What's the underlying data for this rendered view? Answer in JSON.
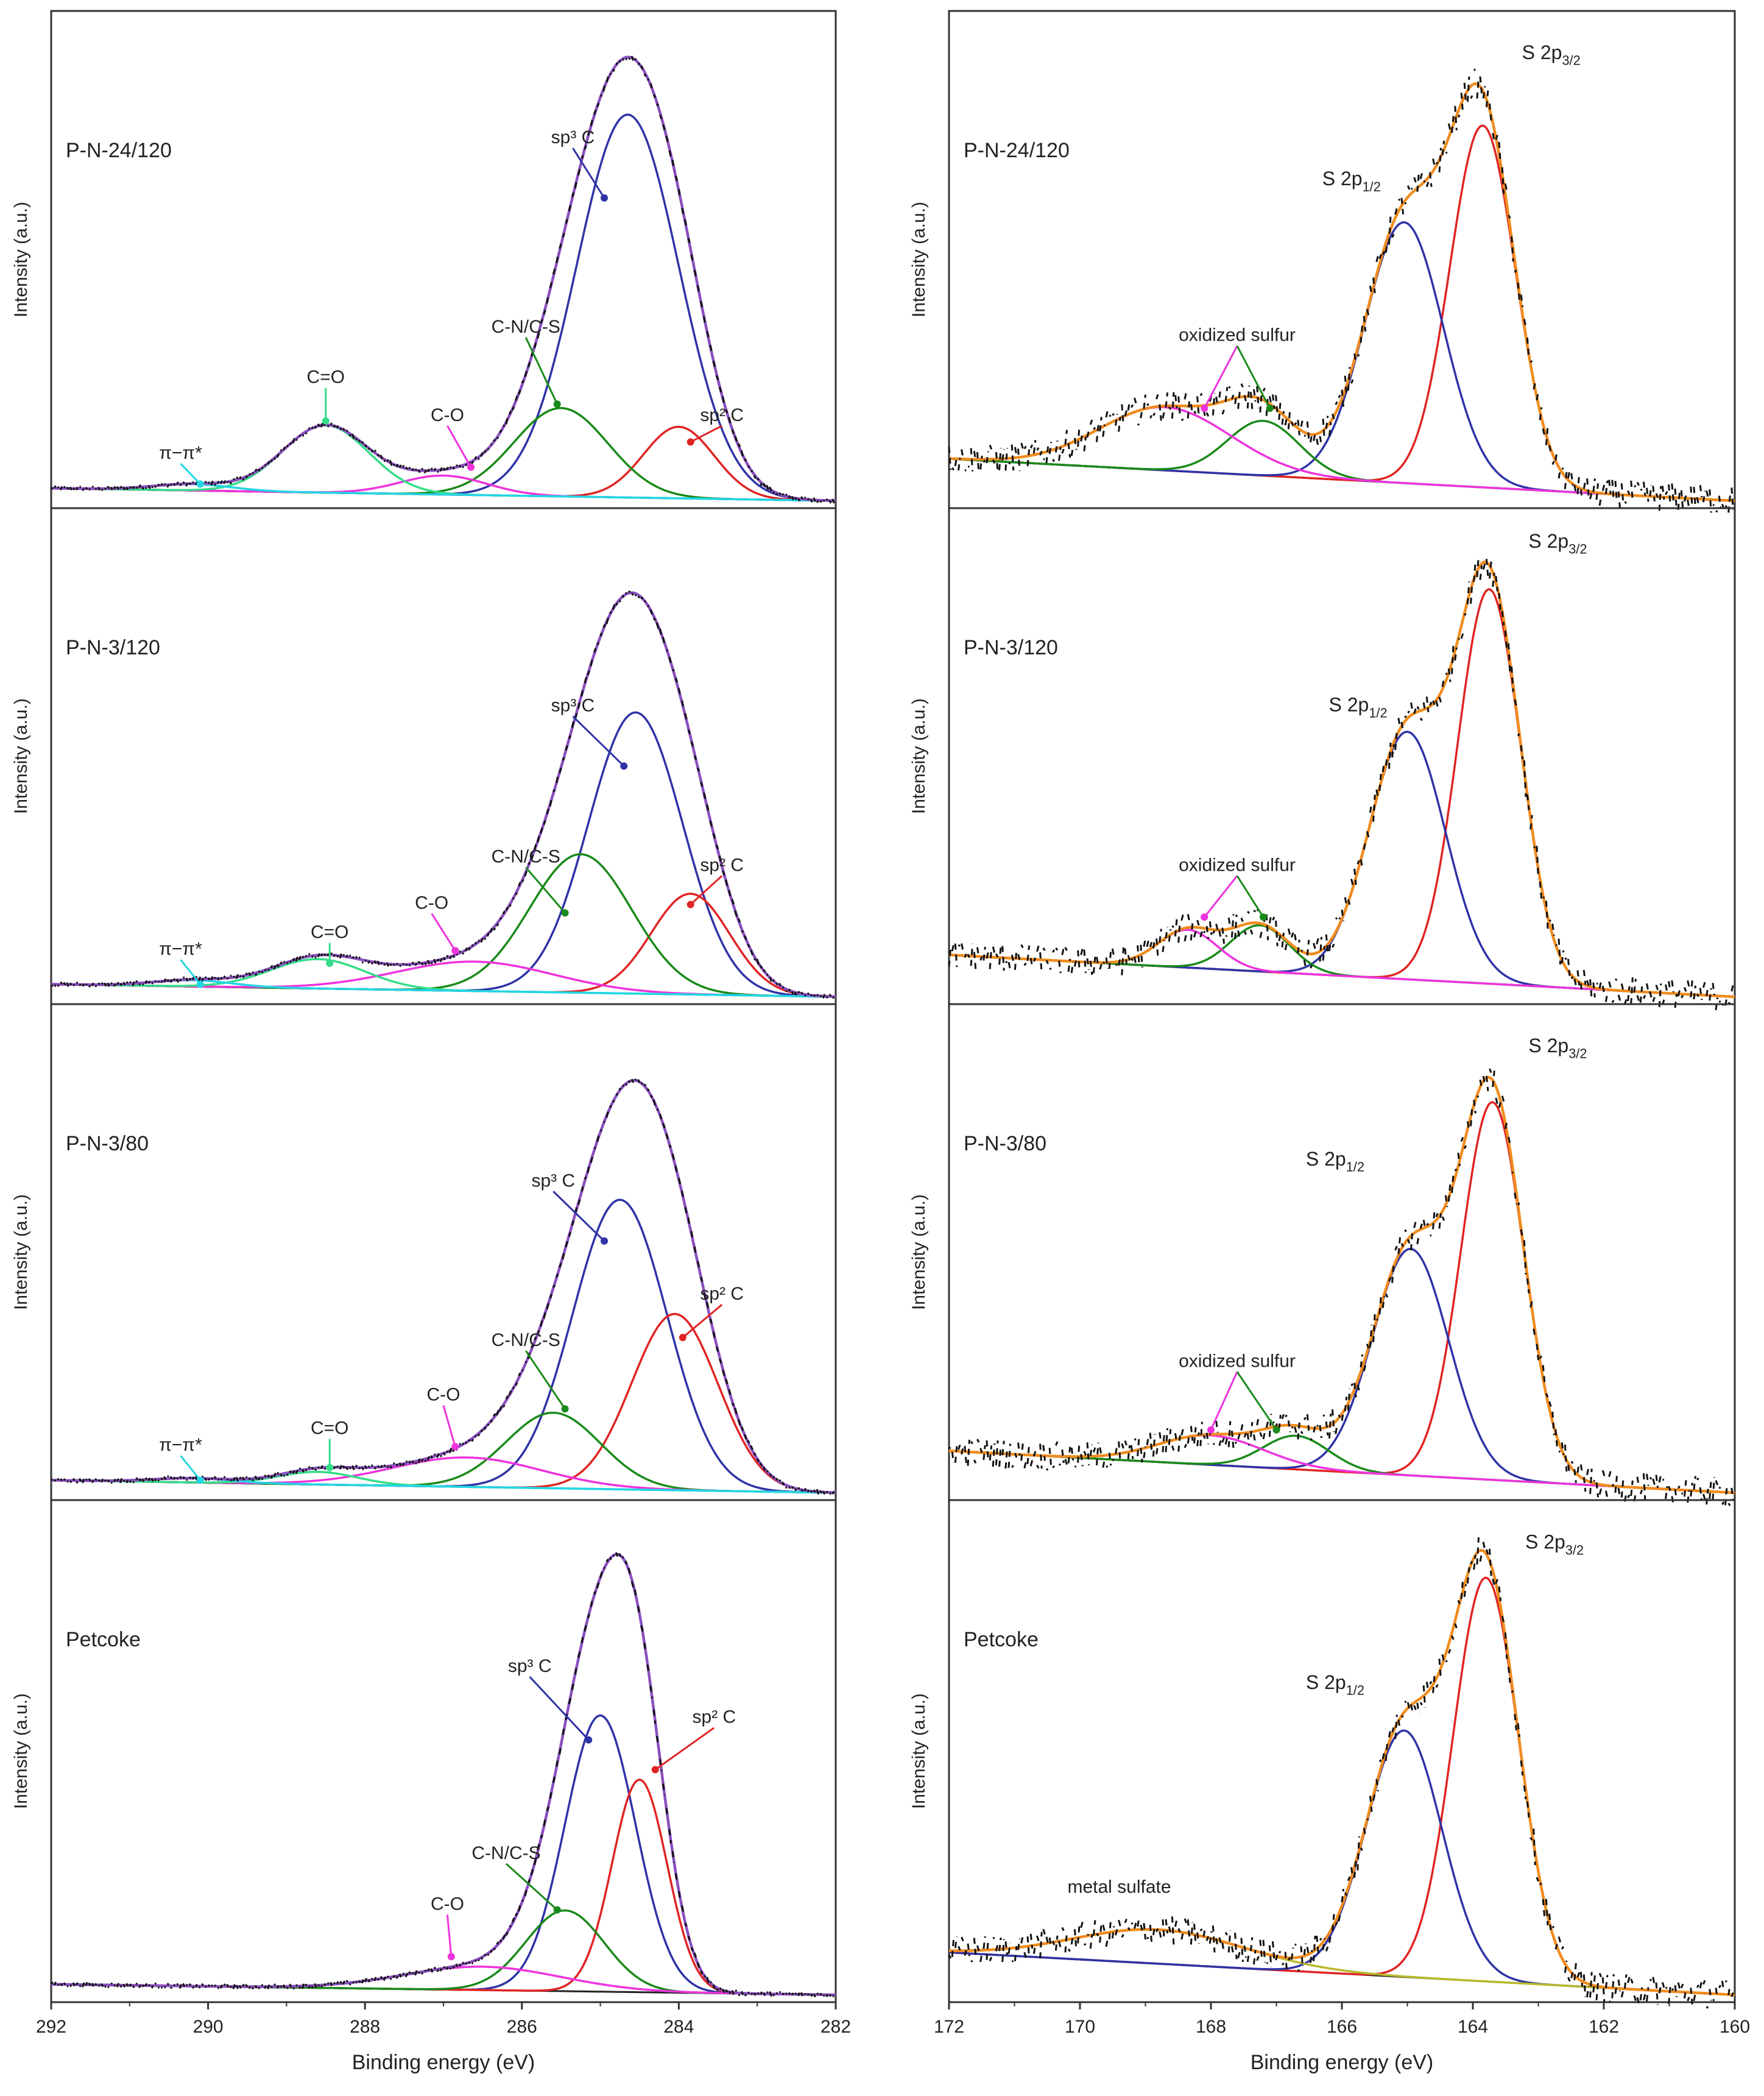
{
  "colors": {
    "data_points": "#111111",
    "envelope_c1s": "#8a4fbf",
    "envelope_s2p": "#f08c1e",
    "baseline": "#222222",
    "sp3_C": "#2f33a6",
    "sp2_C": "#e02424",
    "CN_CS": "#1a8a1a",
    "CO": "#ee33dd",
    "C_eq_O": "#33dd88",
    "pi_pi": "#22d6e6",
    "S2p12": "#2f33a6",
    "S2p32": "#e02424",
    "oxidized_sulfur_1": "#ee33dd",
    "oxidized_sulfur_2": "#1a8a1a",
    "metal_sulfate": "#b8b82a"
  },
  "chart_data": [
    {
      "type": "line",
      "column": "C1s",
      "sample": "P-N-24/120",
      "xlabel": "Binding energy (eV)",
      "ylabel": "Intensity (a.u.)",
      "xlim": [
        292,
        282
      ],
      "xticks": [
        292,
        290,
        288,
        286,
        284,
        282
      ],
      "ylim": [
        0,
        1.15
      ],
      "baseline": {
        "left": 0.03,
        "right": 0.0
      },
      "components": [
        {
          "name": "sp3 C",
          "center": 284.65,
          "height": 0.91,
          "width": 0.65,
          "color_key": "sp3_C"
        },
        {
          "name": "sp2 C",
          "center": 284.0,
          "height": 0.17,
          "width": 0.45,
          "color_key": "sp2_C"
        },
        {
          "name": "C-N/C-S",
          "center": 285.5,
          "height": 0.21,
          "width": 0.6,
          "color_key": "CN_CS"
        },
        {
          "name": "C-O",
          "center": 287.0,
          "height": 0.045,
          "width": 0.55,
          "color_key": "CO"
        },
        {
          "name": "C=O",
          "center": 288.5,
          "height": 0.16,
          "width": 0.55,
          "color_key": "C_eq_O"
        },
        {
          "name": "π−π*",
          "center": 290.2,
          "height": 0.015,
          "width": 0.5,
          "color_key": "pi_pi"
        }
      ],
      "labels": [
        {
          "text": "sp³ C",
          "x": 285.35,
          "y": 0.85,
          "arrow_to": [
            284.95,
            0.72
          ]
        },
        {
          "text": "sp² C",
          "x": 283.45,
          "y": 0.19,
          "arrow_to": [
            283.85,
            0.14
          ]
        },
        {
          "text": "C-N/C-S",
          "x": 285.95,
          "y": 0.4,
          "arrow_to": [
            285.55,
            0.23
          ]
        },
        {
          "text": "C-O",
          "x": 286.95,
          "y": 0.19,
          "arrow_to": [
            286.65,
            0.08
          ]
        },
        {
          "text": "C=O",
          "x": 288.5,
          "y": 0.28,
          "arrow_to": [
            288.5,
            0.19
          ]
        },
        {
          "text": "π−π*",
          "x": 290.35,
          "y": 0.1,
          "arrow_to": [
            290.1,
            0.04
          ]
        }
      ]
    },
    {
      "type": "line",
      "column": "C1s",
      "sample": "P-N-3/120",
      "xlabel": "Binding energy (eV)",
      "ylabel": "Intensity (a.u.)",
      "xlim": [
        292,
        282
      ],
      "xticks": [
        292,
        290,
        288,
        286,
        284,
        282
      ],
      "ylim": [
        0,
        1.15
      ],
      "baseline": {
        "left": 0.03,
        "right": 0.0
      },
      "components": [
        {
          "name": "sp3 C",
          "center": 284.55,
          "height": 0.67,
          "width": 0.6,
          "color_key": "sp3_C"
        },
        {
          "name": "sp2 C",
          "center": 283.85,
          "height": 0.24,
          "width": 0.5,
          "color_key": "sp2_C"
        },
        {
          "name": "C-N/C-S",
          "center": 285.25,
          "height": 0.33,
          "width": 0.65,
          "color_key": "CN_CS"
        },
        {
          "name": "C-O",
          "center": 286.6,
          "height": 0.07,
          "width": 1.0,
          "color_key": "CO"
        },
        {
          "name": "C=O",
          "center": 288.6,
          "height": 0.07,
          "width": 0.6,
          "color_key": "C_eq_O"
        },
        {
          "name": "π−π*",
          "center": 290.2,
          "height": 0.015,
          "width": 0.5,
          "color_key": "pi_pi"
        }
      ],
      "labels": [
        {
          "text": "sp³ C",
          "x": 285.35,
          "y": 0.68,
          "arrow_to": [
            284.7,
            0.55
          ]
        },
        {
          "text": "sp² C",
          "x": 283.45,
          "y": 0.3,
          "arrow_to": [
            283.85,
            0.22
          ]
        },
        {
          "text": "C-N/C-S",
          "x": 285.95,
          "y": 0.32,
          "arrow_to": [
            285.45,
            0.2
          ]
        },
        {
          "text": "C-O",
          "x": 287.15,
          "y": 0.21,
          "arrow_to": [
            286.85,
            0.11
          ]
        },
        {
          "text": "C=O",
          "x": 288.45,
          "y": 0.14,
          "arrow_to": [
            288.45,
            0.08
          ]
        },
        {
          "text": "π−π*",
          "x": 290.35,
          "y": 0.1,
          "arrow_to": [
            290.1,
            0.03
          ]
        }
      ]
    },
    {
      "type": "line",
      "column": "C1s",
      "sample": "P-N-3/80",
      "xlabel": "Binding energy (eV)",
      "ylabel": "Intensity (a.u.)",
      "xlim": [
        292,
        282
      ],
      "xticks": [
        292,
        290,
        288,
        286,
        284,
        282
      ],
      "ylim": [
        0,
        1.15
      ],
      "baseline": {
        "left": 0.03,
        "right": 0.0
      },
      "components": [
        {
          "name": "sp3 C",
          "center": 284.75,
          "height": 0.69,
          "width": 0.6,
          "color_key": "sp3_C"
        },
        {
          "name": "sp2 C",
          "center": 284.05,
          "height": 0.42,
          "width": 0.55,
          "color_key": "sp2_C"
        },
        {
          "name": "C-N/C-S",
          "center": 285.6,
          "height": 0.18,
          "width": 0.6,
          "color_key": "CN_CS"
        },
        {
          "name": "C-O",
          "center": 286.7,
          "height": 0.07,
          "width": 0.95,
          "color_key": "CO"
        },
        {
          "name": "C=O",
          "center": 288.6,
          "height": 0.03,
          "width": 0.5,
          "color_key": "C_eq_O"
        },
        {
          "name": "π−π*",
          "center": 290.2,
          "height": 0.01,
          "width": 0.5,
          "color_key": "pi_pi"
        }
      ],
      "labels": [
        {
          "text": "sp³ C",
          "x": 285.6,
          "y": 0.73,
          "arrow_to": [
            284.95,
            0.6
          ]
        },
        {
          "text": "sp² C",
          "x": 283.45,
          "y": 0.46,
          "arrow_to": [
            283.95,
            0.37
          ]
        },
        {
          "text": "C-N/C-S",
          "x": 285.95,
          "y": 0.35,
          "arrow_to": [
            285.45,
            0.2
          ]
        },
        {
          "text": "C-O",
          "x": 287.0,
          "y": 0.22,
          "arrow_to": [
            286.85,
            0.11
          ]
        },
        {
          "text": "C=O",
          "x": 288.45,
          "y": 0.14,
          "arrow_to": [
            288.45,
            0.06
          ]
        },
        {
          "text": "π−π*",
          "x": 290.35,
          "y": 0.1,
          "arrow_to": [
            290.1,
            0.03
          ]
        }
      ]
    },
    {
      "type": "line",
      "column": "C1s",
      "sample": "Petcoke",
      "xlabel": "Binding energy (eV)",
      "ylabel": "Intensity (a.u.)",
      "xlim": [
        292,
        282
      ],
      "xticks": [
        292,
        290,
        288,
        286,
        284,
        282
      ],
      "ylim": [
        0,
        1.15
      ],
      "baseline": {
        "left": 0.025,
        "right": 0.0
      },
      "components": [
        {
          "name": "sp3 C",
          "center": 285.0,
          "height": 0.65,
          "width": 0.45,
          "color_key": "sp3_C"
        },
        {
          "name": "sp2 C",
          "center": 284.5,
          "height": 0.5,
          "width": 0.35,
          "color_key": "sp2_C"
        },
        {
          "name": "C-N/C-S",
          "center": 285.45,
          "height": 0.19,
          "width": 0.5,
          "color_key": "CN_CS"
        },
        {
          "name": "C-O",
          "center": 286.5,
          "height": 0.055,
          "width": 1.0,
          "color_key": "CO"
        }
      ],
      "labels": [
        {
          "text": "sp³ C",
          "x": 285.9,
          "y": 0.76,
          "arrow_to": [
            285.15,
            0.6
          ]
        },
        {
          "text": "sp² C",
          "x": 283.55,
          "y": 0.64,
          "arrow_to": [
            284.3,
            0.53
          ]
        },
        {
          "text": "C-N/C-S",
          "x": 286.2,
          "y": 0.32,
          "arrow_to": [
            285.55,
            0.2
          ]
        },
        {
          "text": "C-O",
          "x": 286.95,
          "y": 0.2,
          "arrow_to": [
            286.9,
            0.09
          ]
        }
      ]
    },
    {
      "type": "line",
      "column": "S2p",
      "sample": "P-N-24/120",
      "xlabel": "Binding energy (eV)",
      "ylabel": "Intensity (a.u.)",
      "xlim": [
        172,
        160
      ],
      "xticks": [
        172,
        170,
        168,
        166,
        164,
        162,
        160
      ],
      "ylim": [
        0,
        1.15
      ],
      "baseline": {
        "left": 0.1,
        "right": 0.0
      },
      "components": [
        {
          "name": "S 2p3/2",
          "center": 163.85,
          "height": 0.86,
          "width": 0.5,
          "color_key": "S2p32"
        },
        {
          "name": "S 2p1/2",
          "center": 165.05,
          "height": 0.62,
          "width": 0.6,
          "color_key": "S2p12"
        },
        {
          "name": "oxidized sulfur",
          "center": 167.2,
          "height": 0.13,
          "width": 0.55,
          "color_key": "oxidized_sulfur_2"
        },
        {
          "name": "oxidized sulfur",
          "center": 168.7,
          "height": 0.15,
          "width": 1.0,
          "color_key": "oxidized_sulfur_1"
        }
      ],
      "labels": [
        {
          "text": "S 2p3/2",
          "x": 163.25,
          "y": 1.05
        },
        {
          "text": "S 2p1/2",
          "x": 166.3,
          "y": 0.75
        },
        {
          "text": "oxidized sulfur",
          "x": 167.6,
          "y": 0.38,
          "arrows_to": [
            [
              168.1,
              0.22
            ],
            [
              167.1,
              0.22
            ]
          ]
        }
      ]
    },
    {
      "type": "line",
      "column": "S2p",
      "sample": "P-N-3/120",
      "xlabel": "Binding energy (eV)",
      "ylabel": "Intensity (a.u.)",
      "xlim": [
        172,
        160
      ],
      "xticks": [
        172,
        170,
        168,
        166,
        164,
        162,
        160
      ],
      "ylim": [
        0,
        1.15
      ],
      "baseline": {
        "left": 0.1,
        "right": 0.0
      },
      "components": [
        {
          "name": "S 2p3/2",
          "center": 163.75,
          "height": 0.94,
          "width": 0.48,
          "color_key": "S2p32"
        },
        {
          "name": "S 2p1/2",
          "center": 165.0,
          "height": 0.59,
          "width": 0.58,
          "color_key": "S2p12"
        },
        {
          "name": "oxidized sulfur",
          "center": 167.25,
          "height": 0.11,
          "width": 0.45,
          "color_key": "oxidized_sulfur_2"
        },
        {
          "name": "oxidized sulfur",
          "center": 168.35,
          "height": 0.09,
          "width": 0.45,
          "color_key": "oxidized_sulfur_1"
        }
      ],
      "labels": [
        {
          "text": "S 2p3/2",
          "x": 163.15,
          "y": 1.07
        },
        {
          "text": "S 2p1/2",
          "x": 166.2,
          "y": 0.68
        },
        {
          "text": "oxidized sulfur",
          "x": 167.6,
          "y": 0.3,
          "arrows_to": [
            [
              168.1,
              0.19
            ],
            [
              167.2,
              0.19
            ]
          ]
        }
      ]
    },
    {
      "type": "line",
      "column": "S2p",
      "sample": "P-N-3/80",
      "xlabel": "Binding energy (eV)",
      "ylabel": "Intensity (a.u.)",
      "xlim": [
        172,
        160
      ],
      "xticks": [
        172,
        170,
        168,
        166,
        164,
        162,
        160
      ],
      "ylim": [
        0,
        1.15
      ],
      "baseline": {
        "left": 0.1,
        "right": 0.0
      },
      "components": [
        {
          "name": "S 2p3/2",
          "center": 163.7,
          "height": 0.9,
          "width": 0.48,
          "color_key": "S2p32"
        },
        {
          "name": "S 2p1/2",
          "center": 164.95,
          "height": 0.54,
          "width": 0.58,
          "color_key": "S2p12"
        },
        {
          "name": "oxidized sulfur",
          "center": 166.7,
          "height": 0.08,
          "width": 0.5,
          "color_key": "oxidized_sulfur_2"
        },
        {
          "name": "oxidized sulfur",
          "center": 168.0,
          "height": 0.07,
          "width": 0.8,
          "color_key": "oxidized_sulfur_1"
        }
      ],
      "labels": [
        {
          "text": "S 2p3/2",
          "x": 163.15,
          "y": 1.05
        },
        {
          "text": "S 2p1/2",
          "x": 166.55,
          "y": 0.78
        },
        {
          "text": "oxidized sulfur",
          "x": 167.6,
          "y": 0.3,
          "arrows_to": [
            [
              168.0,
              0.15
            ],
            [
              167.0,
              0.15
            ]
          ]
        }
      ]
    },
    {
      "type": "line",
      "column": "S2p",
      "sample": "Petcoke",
      "xlabel": "Binding energy (eV)",
      "ylabel": "Intensity (a.u.)",
      "xlim": [
        172,
        160
      ],
      "xticks": [
        172,
        170,
        168,
        166,
        164,
        162,
        160
      ],
      "ylim": [
        0,
        1.15
      ],
      "baseline": {
        "left": 0.1,
        "right": 0.0
      },
      "components": [
        {
          "name": "S 2p3/2",
          "center": 163.8,
          "height": 0.95,
          "width": 0.5,
          "color_key": "S2p32"
        },
        {
          "name": "S 2p1/2",
          "center": 165.05,
          "height": 0.58,
          "width": 0.58,
          "color_key": "S2p12"
        },
        {
          "name": "metal sulfate",
          "center": 168.8,
          "height": 0.08,
          "width": 1.3,
          "color_key": "metal_sulfate"
        }
      ],
      "labels": [
        {
          "text": "S 2p3/2",
          "x": 163.2,
          "y": 1.05
        },
        {
          "text": "S 2p1/2",
          "x": 166.55,
          "y": 0.72
        },
        {
          "text": "metal sulfate",
          "x": 169.4,
          "y": 0.24
        }
      ]
    }
  ]
}
